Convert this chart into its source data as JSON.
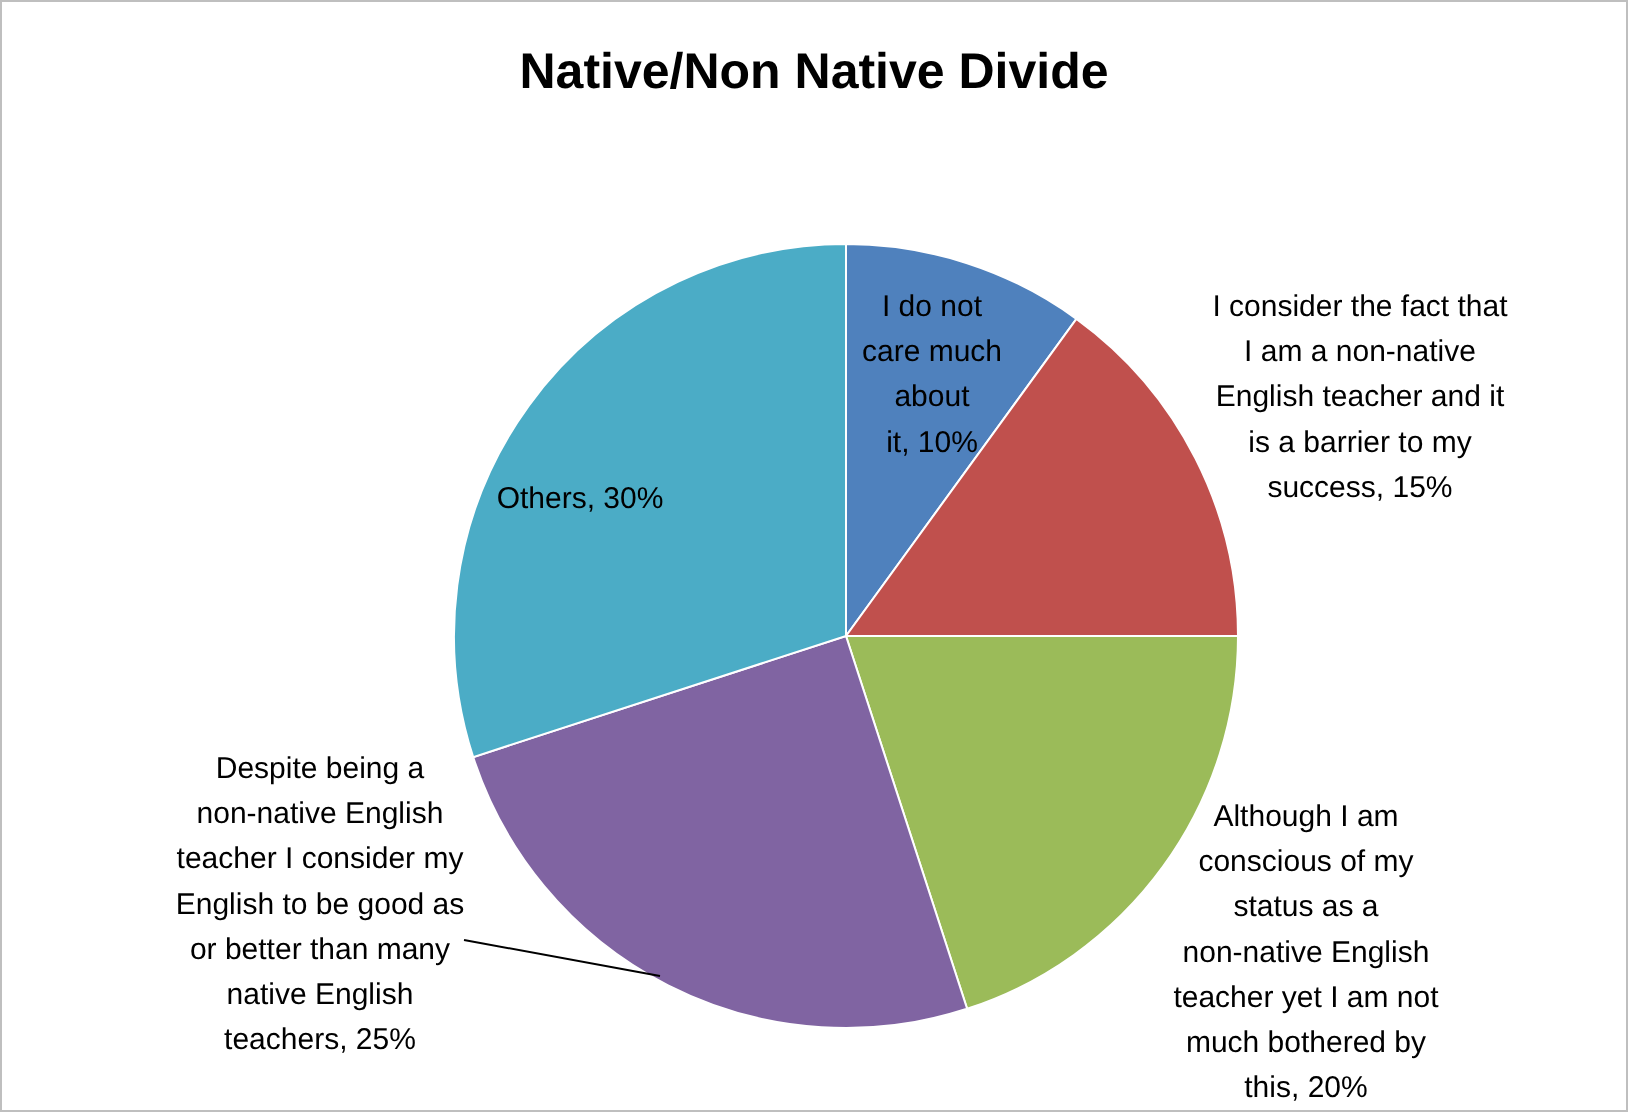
{
  "chart_data": {
    "type": "pie",
    "title": "Native/Non Native Divide",
    "categories": [
      "I do not care much about it",
      "I consider the fact that I am a non-native English teacher and it is a barrier to my success",
      "Although I am conscious of my status as a non-native English teacher yet I am not much bothered by this",
      "Despite being a non-native English teacher I consider my English to be good as or better than many native English teachers",
      "Others"
    ],
    "values": [
      10,
      15,
      20,
      25,
      30
    ],
    "value_labels": [
      "10%",
      "15%",
      "20%",
      "25%",
      "30%"
    ],
    "colors": [
      "#4f81bd",
      "#c0504d",
      "#9bbb59",
      "#8064a2",
      "#4bacc6"
    ],
    "legend": false
  }
}
